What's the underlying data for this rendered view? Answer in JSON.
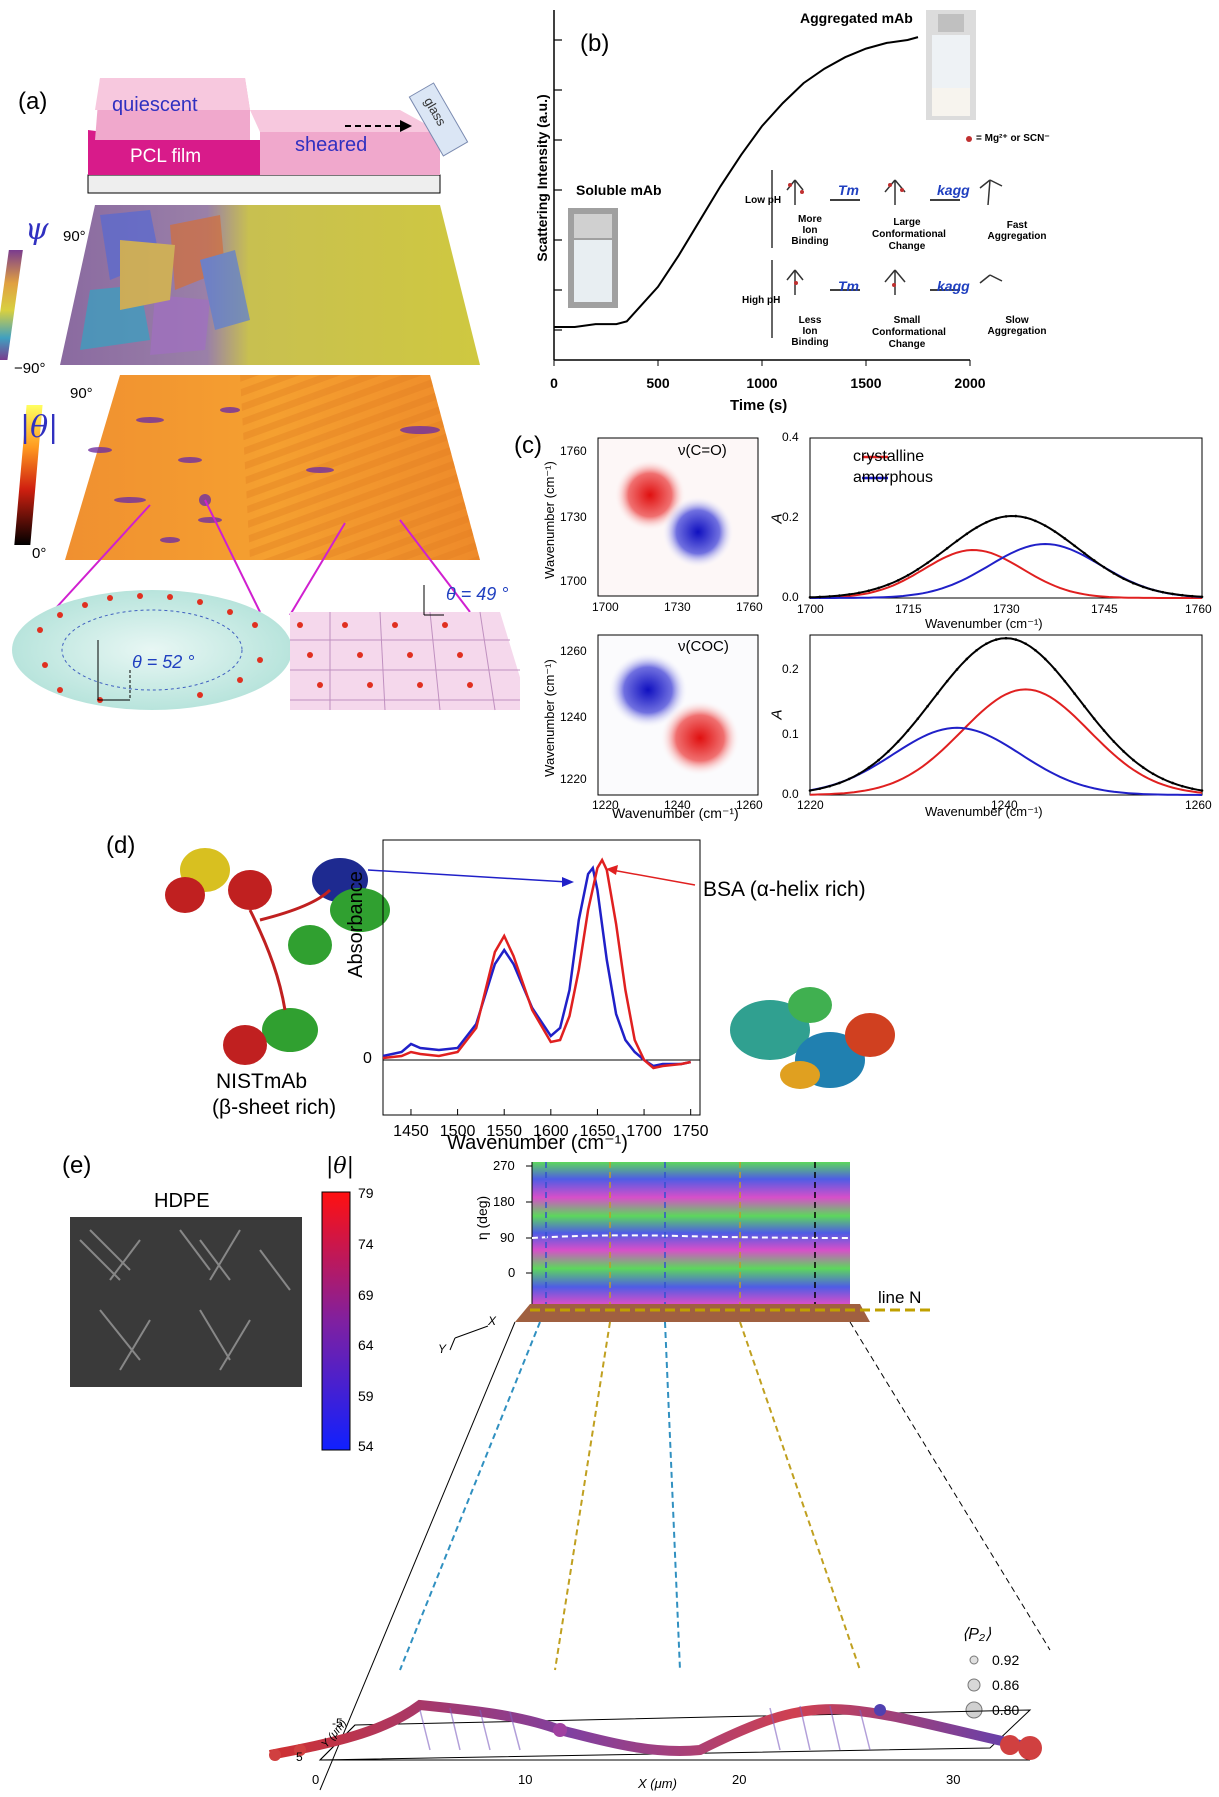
{
  "panel_a": {
    "label": "(a)",
    "schematic": {
      "quiescent": "quiescent",
      "pcl_film": "PCL film",
      "sheared": "sheared",
      "glass": "glass"
    },
    "psi": {
      "symbol": "ψ",
      "top": "90°",
      "bottom": "−90°"
    },
    "theta": {
      "symbol": "|θ|",
      "top": "90°",
      "bottom": "0°"
    },
    "zoom_left": "θ = 52 °",
    "zoom_right": "θ = 49 °"
  },
  "panel_b": {
    "label": "(b)",
    "ylabel": "Scattering Intensity (a.u.)",
    "xlabel": "Time (s)",
    "x_ticks": [
      "0",
      "500",
      "1000",
      "1500",
      "2000"
    ],
    "soluble": "Soluble mAb",
    "aggregated": "Aggregated mAb",
    "legend_ion": "= Mg²⁺ or SCN⁻",
    "low_ph": {
      "label": "Low pH",
      "s1": "More",
      "s1b": "Ion Binding",
      "tm": "Tm",
      "s2": "Large",
      "s2b": "Conformational",
      "s2c": "Change",
      "kagg": "kagg",
      "s3": "Fast",
      "s3b": "Aggregation"
    },
    "high_ph": {
      "label": "High pH",
      "s1": "Less",
      "s1b": "Ion Binding",
      "tm": "Tm",
      "s2": "Small",
      "s2b": "Conformational",
      "s2c": "Change",
      "kagg": "kagg",
      "s3": "Slow",
      "s3b": "Aggregation"
    }
  },
  "panel_c": {
    "label": "(c)",
    "co_title": "ν(C=O)",
    "coc_title": "ν(COC)",
    "map_ylabel": "Wavenumber (cm⁻¹)",
    "map_xlabel": "Wavenumber (cm⁻¹)",
    "map1_yticks": [
      "1760",
      "1730",
      "1700"
    ],
    "map1_xticks": [
      "1700",
      "1730",
      "1760"
    ],
    "map2_yticks": [
      "1260",
      "1240",
      "1220"
    ],
    "map2_xticks": [
      "1220",
      "1240",
      "1260"
    ],
    "legend_crystalline": "crystalline",
    "legend_amorphous": "amorphous",
    "spec_ylabel": "A",
    "spec_xlabel": "Wavenumber (cm⁻¹)",
    "spec1_yticks": [
      "0.4",
      "0.2",
      "0.0"
    ],
    "spec1_xticks": [
      "1700",
      "1715",
      "1730",
      "1745",
      "1760"
    ],
    "spec2_yticks": [
      "0.2",
      "0.1",
      "0.0"
    ],
    "spec2_xticks": [
      "1220",
      "1240",
      "1260"
    ]
  },
  "panel_d": {
    "label": "(d)",
    "ylabel": "Absorbance",
    "xlabel": "Wavenumber (cm⁻¹)",
    "zero": "0",
    "x_ticks": [
      "1450",
      "1500",
      "1550",
      "1600",
      "1650",
      "1700",
      "1750"
    ],
    "nist": "NISTmAb",
    "nist_sub": "(β-sheet rich)",
    "bsa": "BSA (α-helix rich)"
  },
  "panel_e": {
    "label": "(e)",
    "hdpe": "HDPE",
    "cbar_title": "|θ|",
    "cbar_ticks": [
      "79",
      "74",
      "69",
      "64",
      "59",
      "54"
    ],
    "eta_label": "η (deg)",
    "eta_ticks": [
      "270",
      "180",
      "90",
      "0"
    ],
    "line_n": "line N",
    "p2_title": "⟨P₂⟩",
    "p2_values": [
      "0.92",
      "0.86",
      "0.80"
    ],
    "x_axis": "X (μm)",
    "y_axis": "Y (μm)",
    "x_ticks": [
      "0",
      "10",
      "20",
      "30"
    ],
    "y_ticks": [
      "-5",
      "5"
    ],
    "axis_x": "X",
    "axis_y": "Y"
  },
  "chart_data": [
    {
      "type": "line",
      "panel": "b",
      "xlabel": "Time (s)",
      "ylabel": "Scattering Intensity (a.u.)",
      "xlim": [
        0,
        2000
      ],
      "series": [
        {
          "x": [
            0,
            100,
            200,
            300,
            350,
            400,
            500,
            600,
            700,
            800,
            900,
            1000,
            1100,
            1200,
            1300,
            1400,
            1500,
            1600,
            1700,
            1750
          ],
          "y": [
            0.0,
            0.0,
            0.01,
            0.01,
            0.02,
            0.06,
            0.14,
            0.25,
            0.37,
            0.49,
            0.6,
            0.7,
            0.78,
            0.85,
            0.9,
            0.94,
            0.97,
            0.99,
            1.0,
            1.01
          ]
        }
      ]
    },
    {
      "type": "line",
      "panel": "c-top-right",
      "xlabel": "Wavenumber (cm⁻¹)",
      "ylabel": "A",
      "xlim": [
        1700,
        1760
      ],
      "ylim": [
        0,
        0.4
      ],
      "series": [
        {
          "name": "crystalline",
          "color": "#e02020",
          "peak": 1725,
          "height": 0.12,
          "width": 7.5
        },
        {
          "name": "amorphous",
          "color": "#2020c8",
          "peak": 1736,
          "height": 0.135,
          "width": 8.5
        },
        {
          "color": "#000000",
          "peak": 1731,
          "height": 0.205,
          "width": 10
        }
      ]
    },
    {
      "type": "line",
      "panel": "c-bottom-right",
      "xlabel": "Wavenumber (cm⁻¹)",
      "ylabel": "A",
      "xlim": [
        1220,
        1260
      ],
      "ylim": [
        0,
        0.25
      ],
      "series": [
        {
          "name": "crystalline",
          "color": "#e02020",
          "peak": 1242,
          "height": 0.165,
          "width": 6.5
        },
        {
          "name": "amorphous",
          "color": "#2020c8",
          "peak": 1235,
          "height": 0.105,
          "width": 6.5
        },
        {
          "color": "#000000",
          "peak": 1240,
          "height": 0.245,
          "width": 7.5
        }
      ]
    },
    {
      "type": "line",
      "panel": "d",
      "xlabel": "Wavenumber (cm⁻¹)",
      "ylabel": "Absorbance",
      "xlim": [
        1420,
        1760
      ],
      "series": [
        {
          "name": "NISTmAb",
          "color": "#2020c8",
          "x": [
            1420,
            1440,
            1450,
            1460,
            1480,
            1500,
            1520,
            1540,
            1550,
            1560,
            1580,
            1600,
            1610,
            1620,
            1630,
            1640,
            1645,
            1650,
            1660,
            1670,
            1680,
            1690,
            1700,
            1710,
            1720,
            1740,
            1750
          ],
          "y": [
            0.02,
            0.04,
            0.08,
            0.06,
            0.05,
            0.06,
            0.18,
            0.48,
            0.55,
            0.48,
            0.26,
            0.12,
            0.16,
            0.35,
            0.7,
            0.93,
            0.96,
            0.85,
            0.5,
            0.23,
            0.1,
            0.04,
            0.0,
            -0.03,
            -0.02,
            -0.02,
            -0.01
          ]
        },
        {
          "name": "BSA",
          "color": "#e02020",
          "x": [
            1420,
            1440,
            1450,
            1460,
            1480,
            1500,
            1520,
            1540,
            1550,
            1560,
            1580,
            1600,
            1610,
            1620,
            1630,
            1640,
            1650,
            1655,
            1660,
            1670,
            1680,
            1690,
            1700,
            1710,
            1720,
            1740,
            1750
          ],
          "y": [
            0.01,
            0.02,
            0.04,
            0.03,
            0.02,
            0.04,
            0.16,
            0.54,
            0.62,
            0.52,
            0.25,
            0.09,
            0.1,
            0.22,
            0.45,
            0.75,
            0.96,
            1.0,
            0.95,
            0.68,
            0.35,
            0.1,
            0.0,
            -0.04,
            -0.03,
            -0.02,
            -0.01
          ]
        }
      ]
    }
  ]
}
